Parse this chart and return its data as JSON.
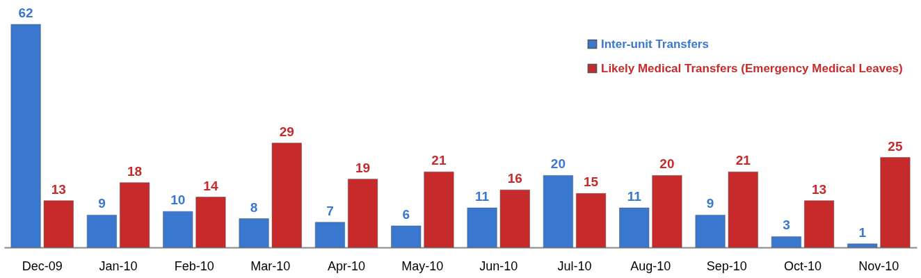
{
  "chart_data": {
    "type": "bar",
    "categories": [
      "Dec-09",
      "Jan-10",
      "Feb-10",
      "Mar-10",
      "Apr-10",
      "May-10",
      "Jun-10",
      "Jul-10",
      "Aug-10",
      "Sep-10",
      "Oct-10",
      "Nov-10"
    ],
    "series": [
      {
        "name": "Inter-unit Transfers",
        "color": "#3a78d0",
        "values": [
          62,
          9,
          10,
          8,
          7,
          6,
          11,
          20,
          11,
          9,
          3,
          1
        ]
      },
      {
        "name": "Likely Medical Transfers (Emergency Medical Leaves)",
        "color": "#c62a2a",
        "values": [
          13,
          18,
          14,
          29,
          19,
          21,
          16,
          15,
          20,
          21,
          13,
          25
        ]
      }
    ],
    "data_labels": true,
    "legend": "top right"
  }
}
